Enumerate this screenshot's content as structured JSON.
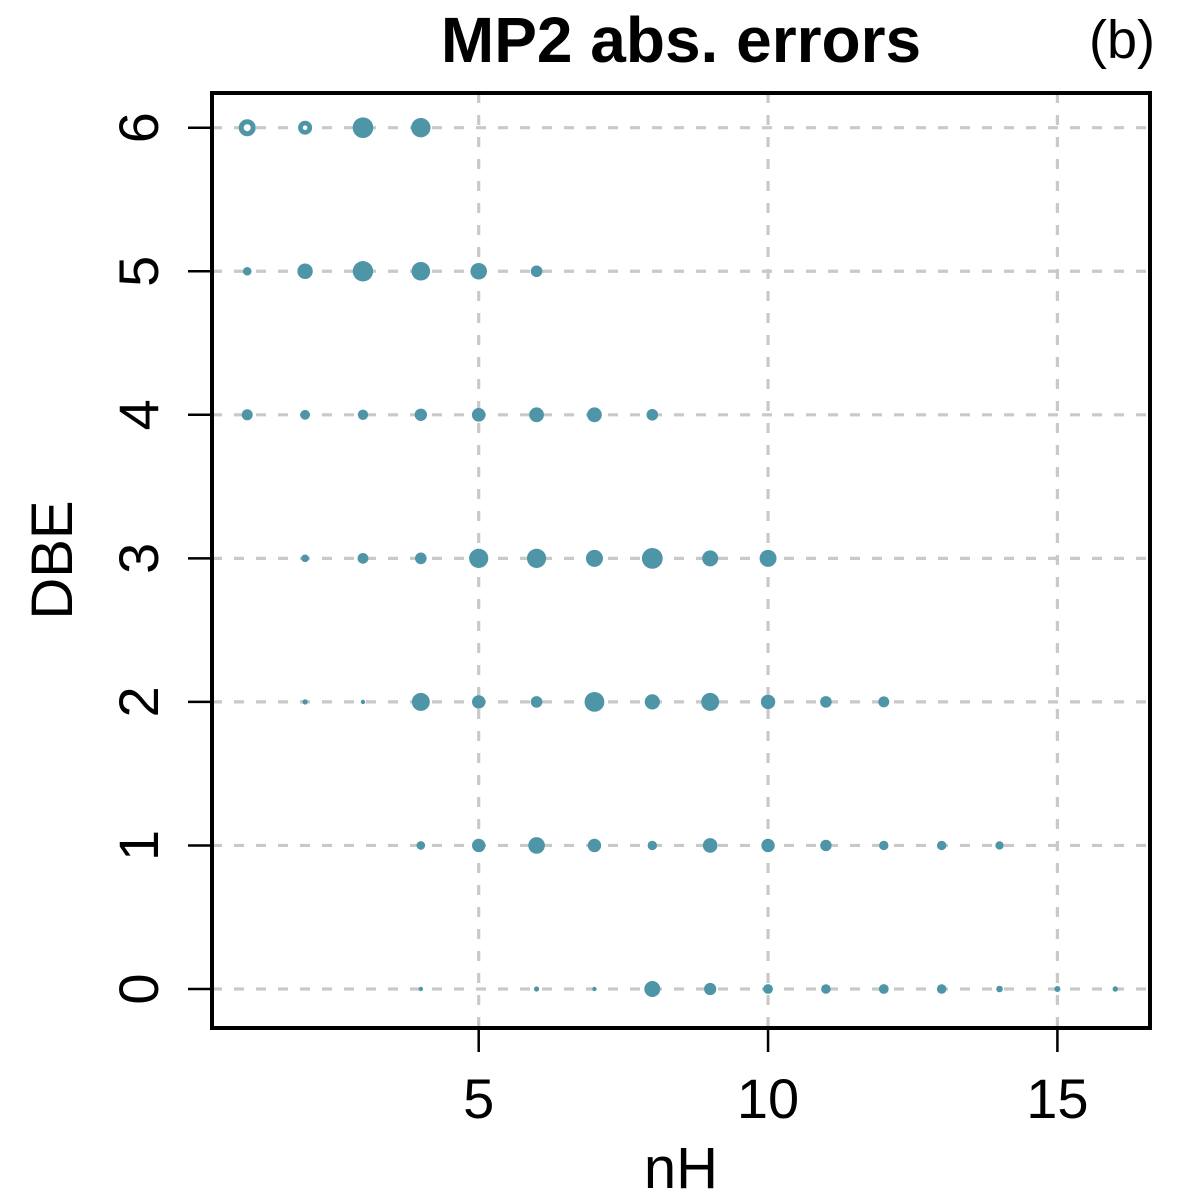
{
  "title": "MP2 abs. errors",
  "panel_label": "(b)",
  "colors": {
    "bubble": "#4e95a8",
    "bubble_hole": "#ffffff",
    "grid": "#c9c9c9",
    "axis": "#000000",
    "background": "#ffffff"
  },
  "chart_data": {
    "type": "scatter",
    "subtype": "bubble",
    "title": "MP2 abs. errors",
    "panel": "(b)",
    "xlabel": "nH",
    "ylabel": "DBE",
    "x_ticks": [
      5,
      10,
      15
    ],
    "y_ticks": [
      0,
      1,
      2,
      3,
      4,
      5,
      6
    ],
    "xlim": [
      0.4,
      16.6
    ],
    "ylim": [
      -0.27,
      6.24
    ],
    "grid": {
      "style": "dashed",
      "vertical_at": [
        5,
        10,
        15
      ],
      "horizontal_at": [
        0,
        1,
        2,
        3,
        4,
        5,
        6
      ]
    },
    "legend_position": "none",
    "marker_size_unit": "px_radius",
    "series": [
      {
        "name": "DBE 6",
        "y": 6,
        "points": [
          {
            "x": 1,
            "r": 8.5,
            "hole": 3.5
          },
          {
            "x": 2,
            "r": 7.0,
            "hole": 2.3
          },
          {
            "x": 3,
            "r": 10.3
          },
          {
            "x": 4,
            "r": 9.7
          }
        ]
      },
      {
        "name": "DBE 5",
        "y": 5,
        "points": [
          {
            "x": 1,
            "r": 4.3
          },
          {
            "x": 2,
            "r": 7.7
          },
          {
            "x": 3,
            "r": 10.2
          },
          {
            "x": 4,
            "r": 9.3
          },
          {
            "x": 5,
            "r": 8.3
          },
          {
            "x": 6,
            "r": 5.8
          }
        ]
      },
      {
        "name": "DBE 4",
        "y": 4,
        "points": [
          {
            "x": 1,
            "r": 5.5
          },
          {
            "x": 2,
            "r": 4.9
          },
          {
            "x": 3,
            "r": 5.2
          },
          {
            "x": 4,
            "r": 6.2
          },
          {
            "x": 5,
            "r": 6.8
          },
          {
            "x": 6,
            "r": 7.4
          },
          {
            "x": 7,
            "r": 7.4
          },
          {
            "x": 8,
            "r": 5.8
          }
        ]
      },
      {
        "name": "DBE 3",
        "y": 3,
        "points": [
          {
            "x": 2,
            "r": 3.8
          },
          {
            "x": 3,
            "r": 5.4
          },
          {
            "x": 4,
            "r": 5.8
          },
          {
            "x": 5,
            "r": 9.6
          },
          {
            "x": 6,
            "r": 9.6
          },
          {
            "x": 7,
            "r": 8.5
          },
          {
            "x": 8,
            "r": 10.4
          },
          {
            "x": 9,
            "r": 8.0
          },
          {
            "x": 10,
            "r": 8.5
          }
        ]
      },
      {
        "name": "DBE 2",
        "y": 2,
        "points": [
          {
            "x": 2,
            "r": 2.7
          },
          {
            "x": 3,
            "r": 2.2
          },
          {
            "x": 4,
            "r": 9.0
          },
          {
            "x": 5,
            "r": 6.7
          },
          {
            "x": 6,
            "r": 5.8
          },
          {
            "x": 7,
            "r": 9.9
          },
          {
            "x": 8,
            "r": 7.6
          },
          {
            "x": 9,
            "r": 9.0
          },
          {
            "x": 10,
            "r": 7.2
          },
          {
            "x": 11,
            "r": 5.8
          },
          {
            "x": 12,
            "r": 5.5
          }
        ]
      },
      {
        "name": "DBE 1",
        "y": 1,
        "points": [
          {
            "x": 4,
            "r": 4.3
          },
          {
            "x": 5,
            "r": 6.7
          },
          {
            "x": 6,
            "r": 8.3
          },
          {
            "x": 7,
            "r": 6.7
          },
          {
            "x": 8,
            "r": 4.7
          },
          {
            "x": 9,
            "r": 7.3
          },
          {
            "x": 10,
            "r": 6.7
          },
          {
            "x": 11,
            "r": 5.7
          },
          {
            "x": 12,
            "r": 4.7
          },
          {
            "x": 13,
            "r": 4.7
          },
          {
            "x": 14,
            "r": 4.2
          }
        ]
      },
      {
        "name": "DBE 0",
        "y": 0,
        "points": [
          {
            "x": 4,
            "r": 2.2
          },
          {
            "x": 6,
            "r": 2.6
          },
          {
            "x": 7,
            "r": 2.2
          },
          {
            "x": 8,
            "r": 8.0
          },
          {
            "x": 9,
            "r": 6.1
          },
          {
            "x": 10,
            "r": 4.9
          },
          {
            "x": 11,
            "r": 4.8
          },
          {
            "x": 12,
            "r": 4.9
          },
          {
            "x": 13,
            "r": 4.8
          },
          {
            "x": 14,
            "r": 3.3
          },
          {
            "x": 15,
            "r": 3.0
          },
          {
            "x": 16,
            "r": 2.7
          }
        ]
      }
    ]
  }
}
